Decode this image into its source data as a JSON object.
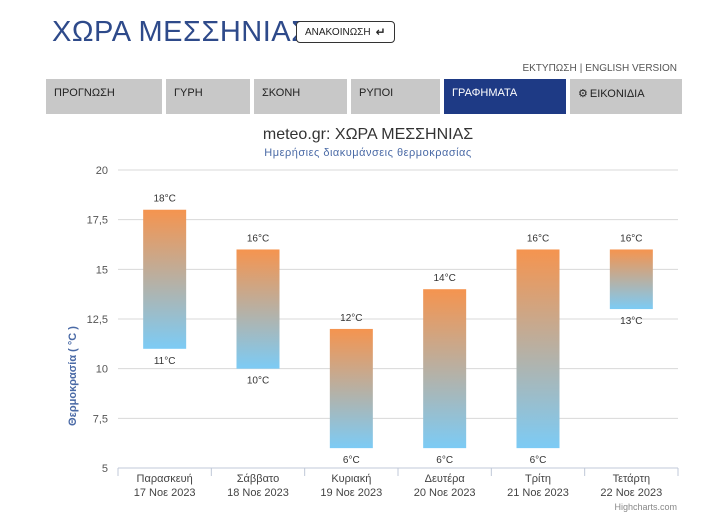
{
  "header": {
    "title": "ΧΩΡΑ ΜΕΣΣΗΝΙΑΣ",
    "announce_label": "ΑΝΑΚΟΙΝΩΣΗ",
    "print_link": "ΕΚΤΥΠΩΣΗ",
    "separator": "|",
    "english_link": "ENGLISH VERSION"
  },
  "tabs": [
    {
      "label": "ΠΡΟΓΝΩΣΗ",
      "active": false
    },
    {
      "label": "ΓΥΡΗ",
      "active": false
    },
    {
      "label": "ΣΚΟΝΗ",
      "active": false
    },
    {
      "label": "ΡΥΠΟΙ",
      "active": false
    },
    {
      "label": "ΓΡΑΦΗΜΑΤΑ",
      "active": true
    },
    {
      "label": "ΕΙΚΟΝΙΔΙΑ",
      "active": false,
      "icon": "gear-icon"
    }
  ],
  "colors": {
    "accent": "#1e3a85",
    "tab_bg": "#c8c8c8",
    "bar_top": "#f5944f",
    "bar_bottom": "#7ccbf5"
  },
  "chart_data": {
    "type": "columnrange",
    "title": "meteo.gr: ΧΩΡΑ ΜΕΣΣΗΝΙΑΣ",
    "subtitle": "Ημερήσιες διακυμάνσεις θερμοκρασίας",
    "ylabel": "Θερμοκρασία ( °C )",
    "xlabel": "",
    "ylim": [
      5,
      20
    ],
    "yticks": [
      "5",
      "7,5",
      "10",
      "12,5",
      "15",
      "17,5",
      "20"
    ],
    "grid": true,
    "unit": "°C",
    "categories": [
      {
        "day": "Παρασκευή",
        "date": "17 Νοε 2023"
      },
      {
        "day": "Σάββατο",
        "date": "18 Νοε 2023"
      },
      {
        "day": "Κυριακή",
        "date": "19 Νοε 2023"
      },
      {
        "day": "Δευτέρα",
        "date": "20 Νοε 2023"
      },
      {
        "day": "Τρίτη",
        "date": "21 Νοε 2023"
      },
      {
        "day": "Τετάρτη",
        "date": "22 Νοε 2023"
      }
    ],
    "low": [
      11,
      10,
      6,
      6,
      6,
      13
    ],
    "high": [
      18,
      16,
      12,
      14,
      16,
      16
    ],
    "low_labels": [
      "11°C",
      "10°C",
      "6°C",
      "6°C",
      "6°C",
      "13°C"
    ],
    "high_labels": [
      "18°C",
      "16°C",
      "12°C",
      "14°C",
      "16°C",
      "16°C"
    ],
    "credits": "Highcharts.com"
  }
}
